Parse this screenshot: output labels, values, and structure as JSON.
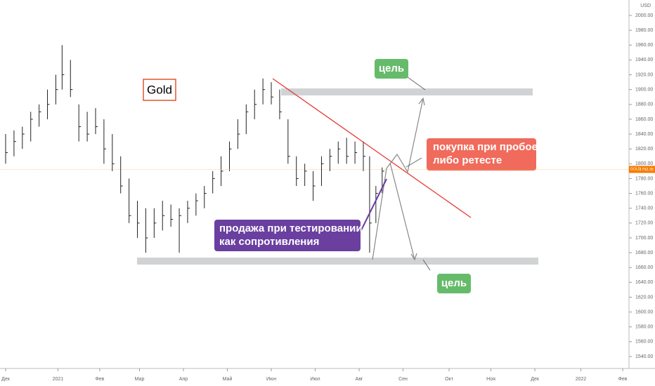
{
  "chart_data": {
    "type": "ohlc",
    "currency": "USD",
    "symbol": "GOLD",
    "last_price": 1792.35,
    "x": [
      0,
      4,
      8,
      12,
      16,
      20,
      24,
      27,
      31,
      35,
      39,
      43,
      47,
      51,
      55,
      59,
      63,
      67,
      71,
      75,
      79,
      83,
      87,
      91,
      95,
      99,
      103,
      107,
      111,
      115,
      119,
      123,
      127,
      131,
      135,
      139,
      143,
      147,
      151,
      155,
      159,
      163,
      167,
      171,
      174,
      177,
      180
    ],
    "high": [
      1840,
      1845,
      1850,
      1870,
      1880,
      1900,
      1920,
      1960,
      1940,
      1880,
      1870,
      1875,
      1860,
      1840,
      1810,
      1780,
      1750,
      1740,
      1740,
      1750,
      1745,
      1740,
      1750,
      1760,
      1770,
      1790,
      1810,
      1830,
      1860,
      1880,
      1900,
      1915,
      1910,
      1900,
      1860,
      1810,
      1800,
      1790,
      1810,
      1820,
      1830,
      1835,
      1830,
      1830,
      1810,
      1770,
      1795
    ],
    "low": [
      1800,
      1810,
      1820,
      1830,
      1850,
      1860,
      1880,
      1900,
      1890,
      1830,
      1830,
      1840,
      1800,
      1790,
      1760,
      1720,
      1700,
      1680,
      1700,
      1710,
      1715,
      1680,
      1720,
      1730,
      1740,
      1760,
      1770,
      1790,
      1820,
      1840,
      1860,
      1880,
      1880,
      1860,
      1800,
      1770,
      1770,
      1750,
      1770,
      1790,
      1800,
      1800,
      1800,
      1790,
      1680,
      1720,
      1760
    ],
    "close": [
      1815,
      1830,
      1840,
      1860,
      1870,
      1880,
      1900,
      1920,
      1900,
      1850,
      1840,
      1850,
      1820,
      1800,
      1770,
      1730,
      1720,
      1700,
      1720,
      1730,
      1725,
      1730,
      1740,
      1750,
      1760,
      1780,
      1790,
      1820,
      1840,
      1870,
      1880,
      1900,
      1890,
      1870,
      1810,
      1780,
      1790,
      1770,
      1800,
      1810,
      1820,
      1810,
      1815,
      1810,
      1720,
      1760,
      1790
    ],
    "xlim": [
      -3,
      295
    ],
    "xticks": [
      {
        "value": 0,
        "label": "Дек"
      },
      {
        "value": 25,
        "label": "2021"
      },
      {
        "value": 45,
        "label": "Фев"
      },
      {
        "value": 64,
        "label": "Мар"
      },
      {
        "value": 85,
        "label": "Апр"
      },
      {
        "value": 106,
        "label": "Май"
      },
      {
        "value": 127,
        "label": "Июн"
      },
      {
        "value": 148,
        "label": "Июл"
      },
      {
        "value": 169,
        "label": "Авг"
      },
      {
        "value": 190,
        "label": "Сен"
      },
      {
        "value": 212,
        "label": "Окт"
      },
      {
        "value": 232,
        "label": "Ноя"
      },
      {
        "value": 253,
        "label": "Дек"
      },
      {
        "value": 275,
        "label": "2022"
      },
      {
        "value": 295,
        "label": "Фев"
      }
    ],
    "ylim": [
      1540,
      2000
    ],
    "yticks": [
      {
        "value": 1540,
        "label": "1540.00"
      },
      {
        "value": 1560,
        "label": "1560.00"
      },
      {
        "value": 1580,
        "label": "1580.00"
      },
      {
        "value": 1600,
        "label": "1600.00"
      },
      {
        "value": 1620,
        "label": "1620.00"
      },
      {
        "value": 1640,
        "label": "1640.00"
      },
      {
        "value": 1660,
        "label": "1660.00"
      },
      {
        "value": 1680,
        "label": "1680.00"
      },
      {
        "value": 1700,
        "label": "1700.00"
      },
      {
        "value": 1720,
        "label": "1720.00"
      },
      {
        "value": 1740,
        "label": "1740.00"
      },
      {
        "value": 1760,
        "label": "1760.00"
      },
      {
        "value": 1780,
        "label": "1780.00"
      },
      {
        "value": 1800,
        "label": "1800.00"
      },
      {
        "value": 1820,
        "label": "1820.00"
      },
      {
        "value": 1840,
        "label": "1840.00"
      },
      {
        "value": 1860,
        "label": "1860.00"
      },
      {
        "value": 1880,
        "label": "1880.00"
      },
      {
        "value": 1900,
        "label": "1900.00"
      },
      {
        "value": 1920,
        "label": "1920.00"
      },
      {
        "value": 1940,
        "label": "1940.00"
      },
      {
        "value": 1960,
        "label": "1960.00"
      },
      {
        "value": 1980,
        "label": "1980.00"
      },
      {
        "value": 2000,
        "label": "2000.00"
      }
    ],
    "annotations": {
      "name": "Gold",
      "target_up": "цель",
      "target_down": "цель",
      "buy": "покупка при пробое\nлибо ретесте",
      "sell": "продажа при тестировании\nкак сопротивления"
    }
  }
}
